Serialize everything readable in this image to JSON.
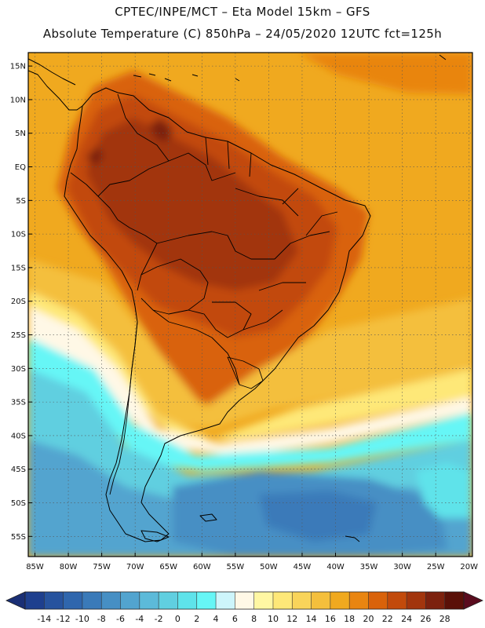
{
  "header": {
    "line1": "CPTEC/INPE/MCT –  Eta Model 15km – GFS",
    "line2": "Absolute Temperature (C) 850hPa – 24/05/2020 12UTC fct=125h"
  },
  "axes": {
    "lat_labels": [
      "15N",
      "10N",
      "5N",
      "EQ",
      "5S",
      "10S",
      "15S",
      "20S",
      "25S",
      "30S",
      "35S",
      "40S",
      "45S",
      "50S",
      "55S"
    ],
    "lat_values": [
      15,
      10,
      5,
      0,
      -5,
      -10,
      -15,
      -20,
      -25,
      -30,
      -35,
      -40,
      -45,
      -50,
      -55
    ],
    "lon_labels": [
      "85W",
      "80W",
      "75W",
      "70W",
      "65W",
      "60W",
      "55W",
      "50W",
      "45W",
      "40W",
      "35W",
      "30W",
      "25W",
      "20W"
    ],
    "lon_values": [
      -85,
      -80,
      -75,
      -70,
      -65,
      -60,
      -55,
      -50,
      -45,
      -40,
      -35,
      -30,
      -25,
      -20
    ],
    "lon_range": [
      -86,
      -19.5
    ],
    "lat_range": [
      -58,
      17
    ]
  },
  "colorbar": {
    "labels": [
      "-14",
      "-12",
      "-10",
      "-8",
      "-6",
      "-4",
      "-2",
      "0",
      "2",
      "4",
      "6",
      "8",
      "10",
      "12",
      "14",
      "16",
      "18",
      "20",
      "22",
      "24",
      "26",
      "28"
    ],
    "colors": [
      "#1e3f8e",
      "#27539e",
      "#2f66ad",
      "#3a7ab9",
      "#468fc4",
      "#52a4cf",
      "#5cbad9",
      "#60cfe0",
      "#5ee3ea",
      "#66f6f6",
      "#cdf5fb",
      "#fff8e6",
      "#fff7a3",
      "#fee878",
      "#f9d45a",
      "#f4bf3c",
      "#f0a91f",
      "#e98510",
      "#d9620a",
      "#c24a0b",
      "#a2350d",
      "#7c210e",
      "#5a1008"
    ],
    "min_arrow_color": "#1a2f75",
    "max_arrow_color": "#5a0c1e"
  }
}
